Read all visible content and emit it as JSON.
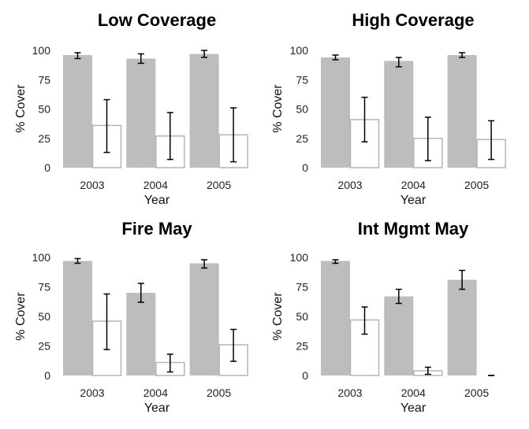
{
  "chart_data": [
    {
      "type": "bar",
      "title": "Low Coverage",
      "xlabel": "Year",
      "ylabel": "% Cover",
      "ylim": [
        0,
        100
      ],
      "yticks": [
        0,
        25,
        50,
        75,
        100
      ],
      "categories": [
        "2003",
        "2004",
        "2005"
      ],
      "series": [
        {
          "color": "#bdbdbd",
          "values": [
            96,
            93,
            97
          ],
          "err_low": [
            93,
            89,
            94
          ],
          "err_high": [
            98,
            97,
            100
          ]
        },
        {
          "color": "#ffffff",
          "values": [
            36,
            27,
            28
          ],
          "err_low": [
            13,
            7,
            5
          ],
          "err_high": [
            58,
            47,
            51
          ]
        }
      ]
    },
    {
      "type": "bar",
      "title": "High Coverage",
      "xlabel": "Year",
      "ylabel": "% Cover",
      "ylim": [
        0,
        100
      ],
      "yticks": [
        0,
        25,
        50,
        75,
        100
      ],
      "categories": [
        "2003",
        "2004",
        "2005"
      ],
      "series": [
        {
          "color": "#bdbdbd",
          "values": [
            94,
            91,
            96
          ],
          "err_low": [
            92,
            86,
            94
          ],
          "err_high": [
            96,
            94,
            98
          ]
        },
        {
          "color": "#ffffff",
          "values": [
            41,
            25,
            24
          ],
          "err_low": [
            22,
            6,
            7
          ],
          "err_high": [
            60,
            43,
            40
          ]
        }
      ]
    },
    {
      "type": "bar",
      "title": "Fire May",
      "xlabel": "Year",
      "ylabel": "% Cover",
      "ylim": [
        0,
        100
      ],
      "yticks": [
        0,
        25,
        50,
        75,
        100
      ],
      "categories": [
        "2003",
        "2004",
        "2005"
      ],
      "series": [
        {
          "color": "#bdbdbd",
          "values": [
            97,
            70,
            95
          ],
          "err_low": [
            95,
            62,
            91
          ],
          "err_high": [
            99,
            78,
            98
          ]
        },
        {
          "color": "#ffffff",
          "values": [
            46,
            11,
            26
          ],
          "err_low": [
            22,
            3,
            12
          ],
          "err_high": [
            69,
            18,
            39
          ]
        }
      ]
    },
    {
      "type": "bar",
      "title": "Int Mgmt May",
      "xlabel": "Year",
      "ylabel": "% Cover",
      "ylim": [
        0,
        100
      ],
      "yticks": [
        0,
        25,
        50,
        75,
        100
      ],
      "categories": [
        "2003",
        "2004",
        "2005"
      ],
      "series": [
        {
          "color": "#bdbdbd",
          "values": [
            97,
            67,
            81
          ],
          "err_low": [
            95,
            61,
            73
          ],
          "err_high": [
            98,
            73,
            89
          ]
        },
        {
          "color": "#ffffff",
          "values": [
            47,
            4,
            0
          ],
          "err_low": [
            35,
            1,
            0
          ],
          "err_high": [
            58,
            7,
            0
          ]
        }
      ]
    }
  ]
}
